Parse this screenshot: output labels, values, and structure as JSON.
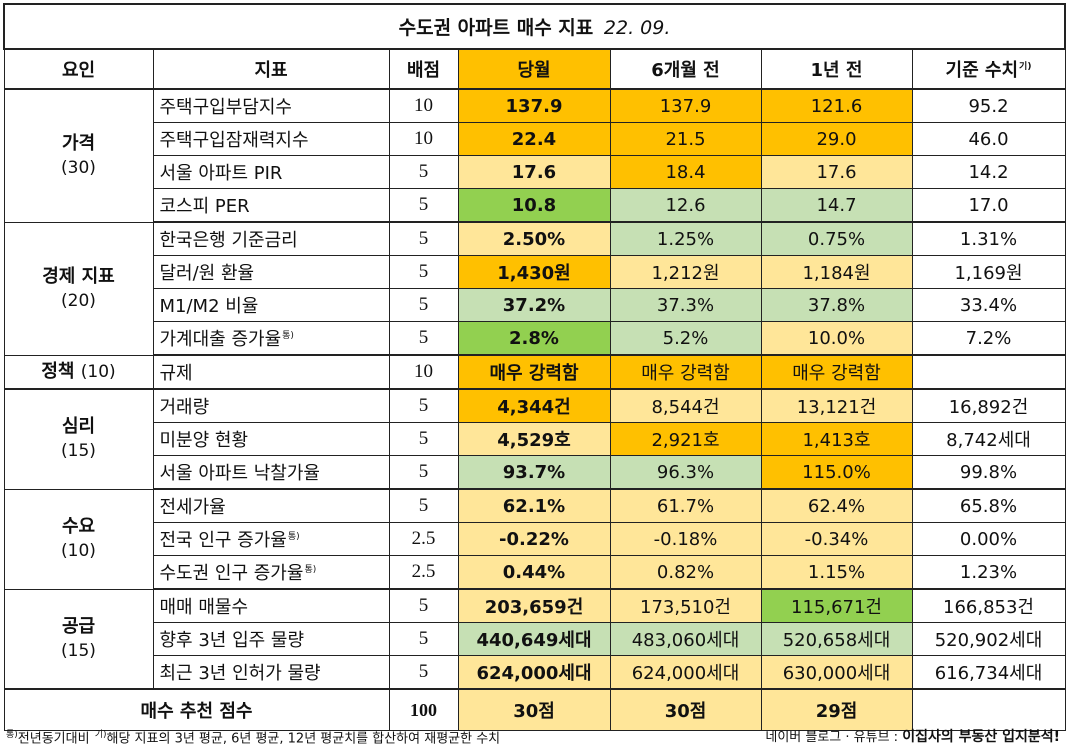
{
  "title": "수도권 아파트 매수 지표",
  "date": "22. 09.",
  "headers": [
    "요인",
    "지표",
    "배점",
    "당월",
    "6개월 전",
    "1년 전",
    "기준 수치"
  ],
  "header_sup": "기)",
  "groups": [
    {
      "factor": "가격",
      "weight": "(30)",
      "rows": [
        {
          "indicator": "주택구입부담지수",
          "sup": "",
          "score": "10",
          "cur": "137.9",
          "m6": "137.9",
          "y1": "121.6",
          "base": "95.2"
        },
        {
          "indicator": "주택구입잠재력지수",
          "sup": "",
          "score": "10",
          "cur": "22.4",
          "m6": "21.5",
          "y1": "29.0",
          "base": "46.0"
        },
        {
          "indicator": "서울 아파트 PIR",
          "sup": "",
          "score": "5",
          "cur": "17.6",
          "m6": "18.4",
          "y1": "17.6",
          "base": "14.2"
        },
        {
          "indicator": "코스피 PER",
          "sup": "",
          "score": "5",
          "cur": "10.8",
          "m6": "12.6",
          "y1": "14.7",
          "base": "17.0"
        }
      ]
    },
    {
      "factor": "경제 지표",
      "weight": "(20)",
      "rows": [
        {
          "indicator": "한국은행 기준금리",
          "sup": "",
          "score": "5",
          "cur": "2.50%",
          "m6": "1.25%",
          "y1": "0.75%",
          "base": "1.31%"
        },
        {
          "indicator": "달러/원 환율",
          "sup": "",
          "score": "5",
          "cur": "1,430원",
          "m6": "1,212원",
          "y1": "1,184원",
          "base": "1,169원"
        },
        {
          "indicator": "M1/M2 비율",
          "sup": "",
          "score": "5",
          "cur": "37.2%",
          "m6": "37.3%",
          "y1": "37.8%",
          "base": "33.4%"
        },
        {
          "indicator": "가계대출 증가율",
          "sup": "통)",
          "score": "5",
          "cur": "2.8%",
          "m6": "5.2%",
          "y1": "10.0%",
          "base": "7.2%"
        }
      ]
    },
    {
      "factor": "정책",
      "weight": "(10)",
      "rows": [
        {
          "indicator": "규제",
          "sup": "",
          "score": "10",
          "cur": "매우 강력함",
          "m6": "매우 강력함",
          "y1": "매우 강력함",
          "base": ""
        }
      ]
    },
    {
      "factor": "심리",
      "weight": "(15)",
      "rows": [
        {
          "indicator": "거래량",
          "sup": "",
          "score": "5",
          "cur": "4,344건",
          "m6": "8,544건",
          "y1": "13,121건",
          "base": "16,892건"
        },
        {
          "indicator": "미분양 현황",
          "sup": "",
          "score": "5",
          "cur": "4,529호",
          "m6": "2,921호",
          "y1": "1,413호",
          "base": "8,742세대"
        },
        {
          "indicator": "서울 아파트 낙찰가율",
          "sup": "",
          "score": "5",
          "cur": "93.7%",
          "m6": "96.3%",
          "y1": "115.0%",
          "base": "99.8%"
        }
      ]
    },
    {
      "factor": "수요",
      "weight": "(10)",
      "rows": [
        {
          "indicator": "전세가율",
          "sup": "",
          "score": "5",
          "cur": "62.1%",
          "m6": "61.7%",
          "y1": "62.4%",
          "base": "65.8%"
        },
        {
          "indicator": "전국 인구 증가율",
          "sup": "통)",
          "score": "2.5",
          "cur": "-0.22%",
          "m6": "-0.18%",
          "y1": "-0.34%",
          "base": "0.00%"
        },
        {
          "indicator": "수도권 인구 증가율",
          "sup": "통)",
          "score": "2.5",
          "cur": "0.44%",
          "m6": "0.82%",
          "y1": "1.15%",
          "base": "1.23%"
        }
      ]
    },
    {
      "factor": "공급",
      "weight": "(15)",
      "rows": [
        {
          "indicator": "매매 매물수",
          "sup": "",
          "score": "5",
          "cur": "203,659건",
          "m6": "173,510건",
          "y1": "115,671건",
          "base": "166,853건"
        },
        {
          "indicator": "향후 3년 입주 물량",
          "sup": "",
          "score": "5",
          "cur": "440,649세대",
          "m6": "483,060세대",
          "y1": "520,658세대",
          "base": "520,902세대"
        },
        {
          "indicator": "최근 3년 인허가 물량",
          "sup": "",
          "score": "5",
          "cur": "624,000세대",
          "m6": "624,000세대",
          "y1": "630,000세대",
          "base": "616,734세대"
        }
      ]
    }
  ],
  "total": {
    "label": "매수 추천 점수",
    "score": "100",
    "cur": "30점",
    "m6": "30점",
    "y1": "29점",
    "base": ""
  },
  "footer": {
    "note_sup1": "통)",
    "note1": "전년동기대비",
    "note_sup2": "기)",
    "note2": "해당 지표의 3년 평균, 6년 평균, 12년 평균치를 합산하여 재평균한 수치",
    "credit_prefix": "네이버 블로그 · 유튜브 : ",
    "credit_name": "이집사의 부동산 입지분석!"
  },
  "colors": {
    "orange": "#ffc000",
    "yellow": "#ffe699",
    "light_green": "#c6e0b4",
    "green": "#92d050"
  }
}
